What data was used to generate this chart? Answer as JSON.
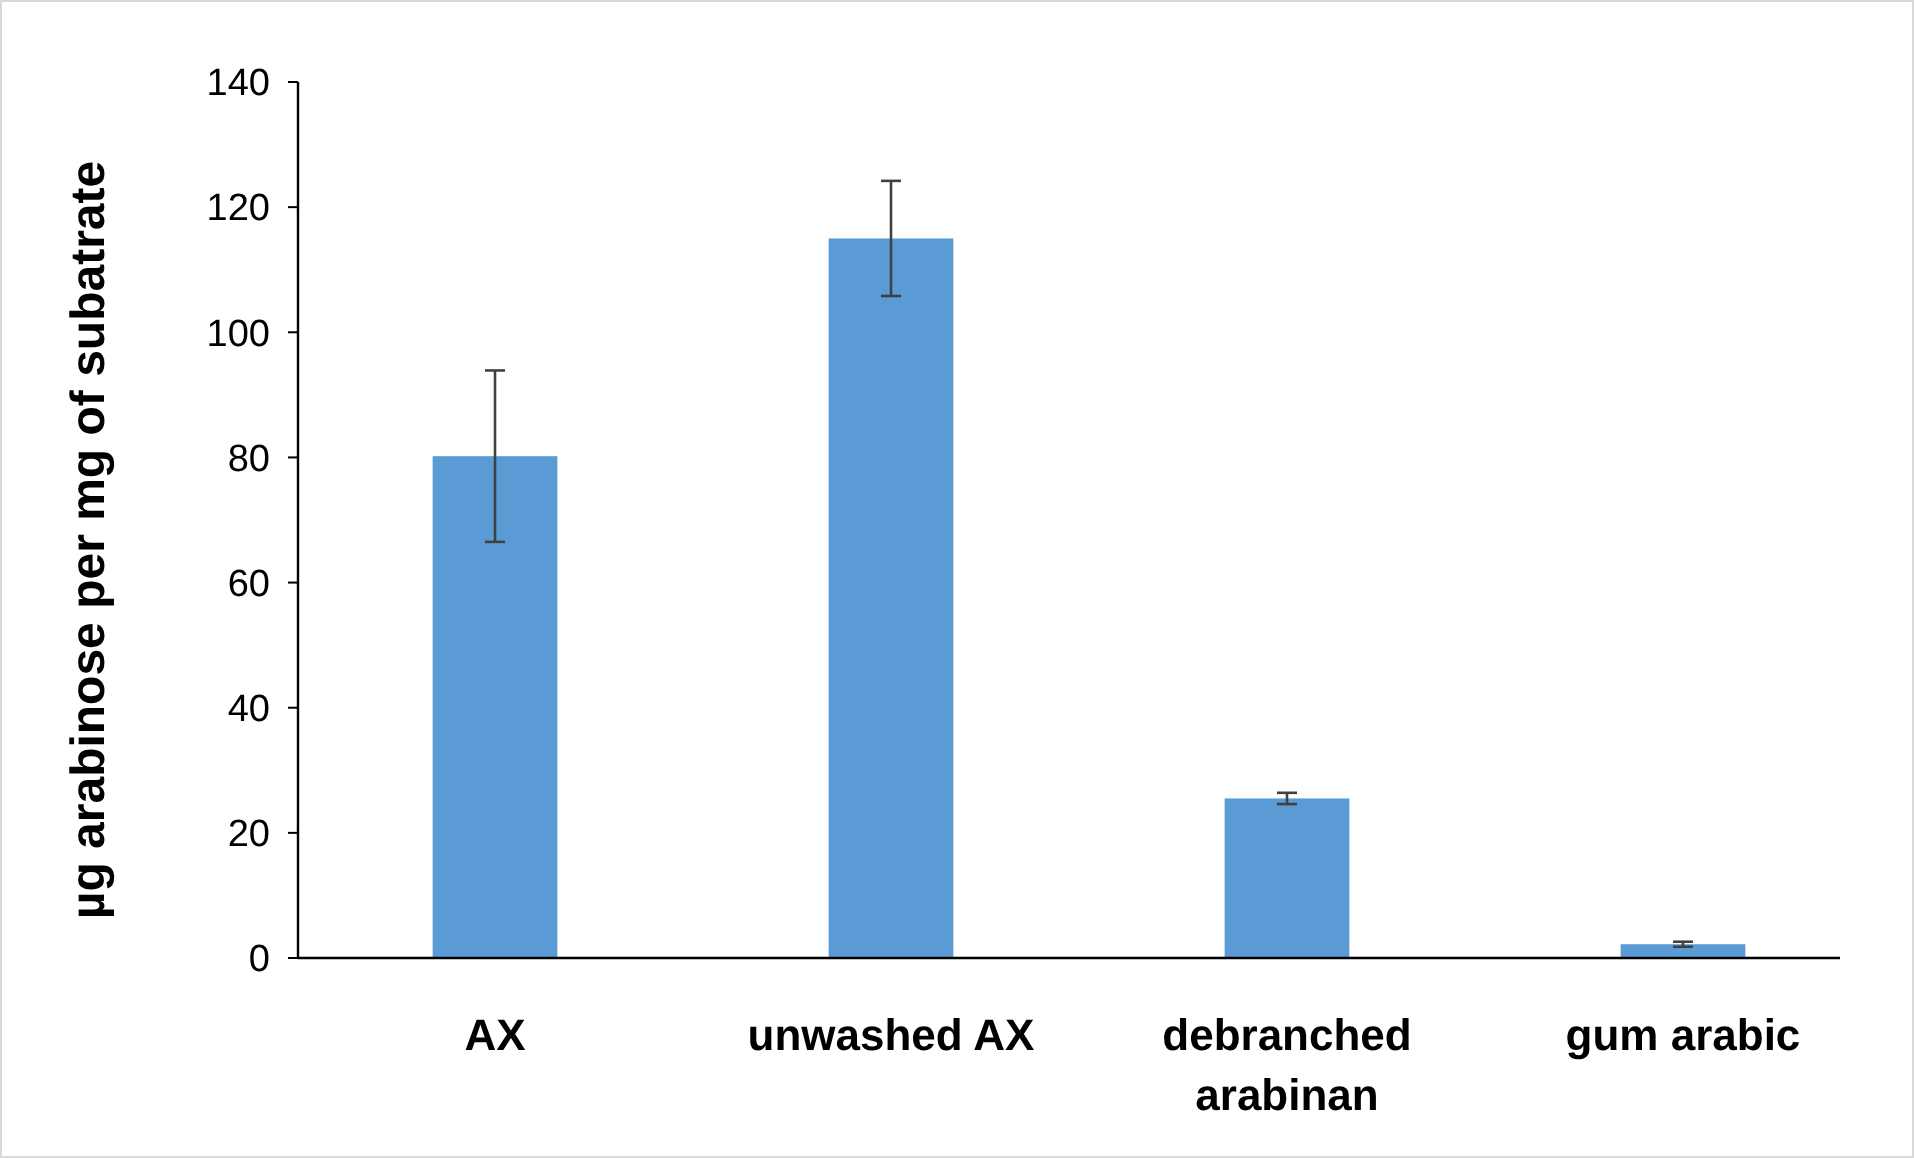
{
  "chart_data": {
    "type": "bar",
    "ylabel": "µg arabinose per mg of subatrate",
    "categories": [
      "AX",
      "unwashed AX",
      "debranched arabinan",
      "gum arabic"
    ],
    "values": [
      80.2,
      115,
      25.5,
      2.2
    ],
    "errors": [
      13.7,
      9.2,
      0.9,
      0.4
    ],
    "color": "#5b9bd5",
    "ylim": [
      0,
      140
    ],
    "yticks": [
      0,
      20,
      40,
      60,
      80,
      100,
      120,
      140
    ],
    "grid": false
  }
}
